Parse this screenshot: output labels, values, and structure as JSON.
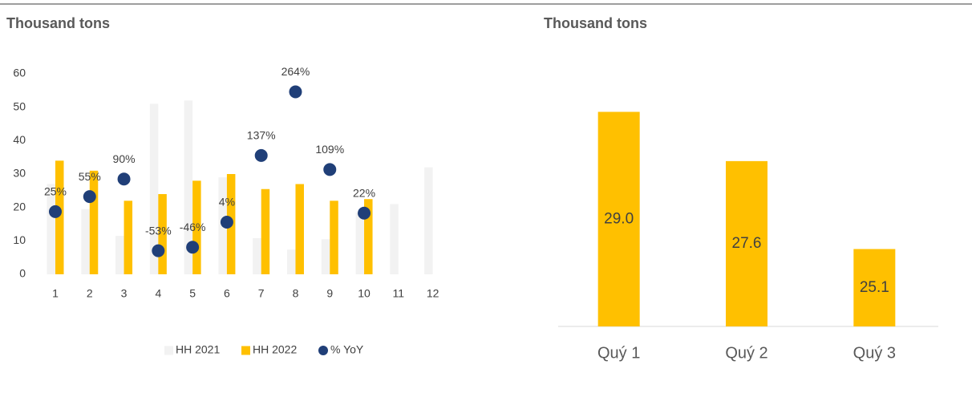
{
  "chart_data": [
    {
      "type": "bar",
      "title": "Thousand tons",
      "categories": [
        "1",
        "2",
        "3",
        "4",
        "5",
        "6",
        "7",
        "8",
        "9",
        "10",
        "11",
        "12"
      ],
      "series": [
        {
          "name": "HH 2021",
          "color": "#f2f2f2",
          "values": [
            27,
            19.5,
            11.5,
            51,
            52,
            29,
            10.8,
            7.4,
            10.5,
            18.5,
            21,
            32
          ]
        },
        {
          "name": "HH 2022",
          "color": "#ffc000",
          "values": [
            34,
            31,
            22,
            24,
            28,
            30,
            25.5,
            27,
            22,
            22.5,
            null,
            null
          ]
        },
        {
          "name": "% YoY",
          "color": "#203f78",
          "type": "scatter",
          "axis": "y2",
          "values": [
            25,
            55,
            90,
            -53,
            -46,
            4,
            137,
            264,
            109,
            22
          ],
          "value_labels": [
            "25%",
            "55%",
            "90%",
            "-53%",
            "-46%",
            "4%",
            "137%",
            "264%",
            "109%",
            "22%"
          ]
        }
      ],
      "ylim": [
        0,
        60
      ],
      "yticks": [
        0,
        10,
        20,
        30,
        40,
        50,
        60
      ],
      "y2lim": [
        -100,
        300
      ],
      "grid": false,
      "legend": "bottom"
    },
    {
      "type": "bar",
      "title": "Thousand tons",
      "categories": [
        "Quý 1",
        "Quý 2",
        "Quý 3"
      ],
      "values": [
        29.0,
        27.6,
        25.1
      ],
      "value_labels": [
        "29.0",
        "27.6",
        "25.1"
      ],
      "color": "#ffc000",
      "ylim": [
        22.9,
        29.9
      ],
      "grid": false
    }
  ]
}
